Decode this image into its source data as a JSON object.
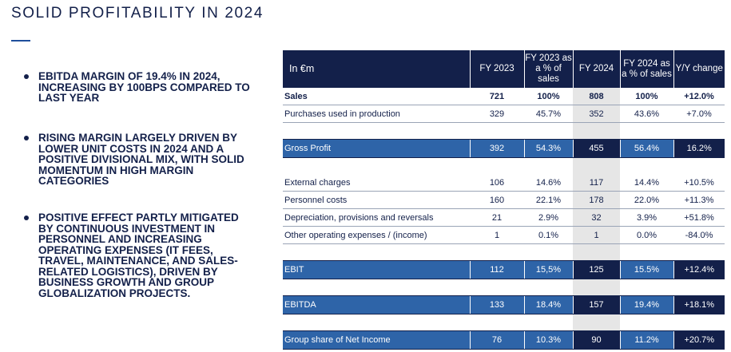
{
  "title": "SOLID PROFITABILITY IN 2024",
  "bullets": [
    "EBITDA MARGIN OF 19.4% IN 2024, INCREASING BY 100BPS COMPARED TO LAST YEAR",
    "RISING MARGIN LARGELY DRIVEN BY LOWER UNIT COSTS IN 2024 AND A POSITIVE DIVISIONAL MIX, WITH SOLID MOMENTUM IN HIGH MARGIN CATEGORIES",
    "POSITIVE EFFECT PARTLY MITIGATED BY CONTINUOUS INVESTMENT IN PERSONNEL AND INCREASING OPERATING EXPENSES (IT FEES, TRAVEL, MAINTENANCE, AND SALES-RELATED LOGISTICS), DRIVEN BY BUSINESS GROWTH AND GROUP GLOBALIZATION PROJECTS."
  ],
  "table": {
    "headers": [
      "In €m",
      "FY 2023",
      "FY 2023 as a % of sales",
      "FY 2024",
      "FY 2024 as a % of sales",
      "Y/Y change"
    ],
    "rows": {
      "sales": [
        "Sales",
        "721",
        "100%",
        "808",
        "100%",
        "+12.0%"
      ],
      "purchases": [
        "Purchases used in production",
        "329",
        "45.7%",
        "352",
        "43.6%",
        "+7.0%"
      ],
      "gross_profit": [
        "Gross Profit",
        "392",
        "54.3%",
        "455",
        "56.4%",
        "16.2%"
      ],
      "external": [
        "External charges",
        "106",
        "14.6%",
        "117",
        "14.4%",
        "+10.5%"
      ],
      "personnel": [
        "Personnel costs",
        "160",
        "22.1%",
        "178",
        "22.0%",
        "+11.3%"
      ],
      "depreciation": [
        "Depreciation, provisions and reversals",
        "21",
        "2.9%",
        "32",
        "3.9%",
        "+51.8%"
      ],
      "other_opex": [
        "Other operating expenses / (income)",
        "1",
        "0.1%",
        "1",
        "0.0%",
        "-84.0%"
      ],
      "ebit": [
        "EBIT",
        "112",
        "15,5%",
        "125",
        "15.5%",
        "+12.4%"
      ],
      "ebitda": [
        "EBITDA",
        "133",
        "18.4%",
        "157",
        "19.4%",
        "+18.1%"
      ],
      "net_income": [
        "Group share of Net Income",
        "76",
        "10.3%",
        "90",
        "11.2%",
        "+20.7%"
      ]
    }
  },
  "colors": {
    "navy": "#13204a",
    "blue": "#2e64a8",
    "shade": "#e6e6e6"
  }
}
